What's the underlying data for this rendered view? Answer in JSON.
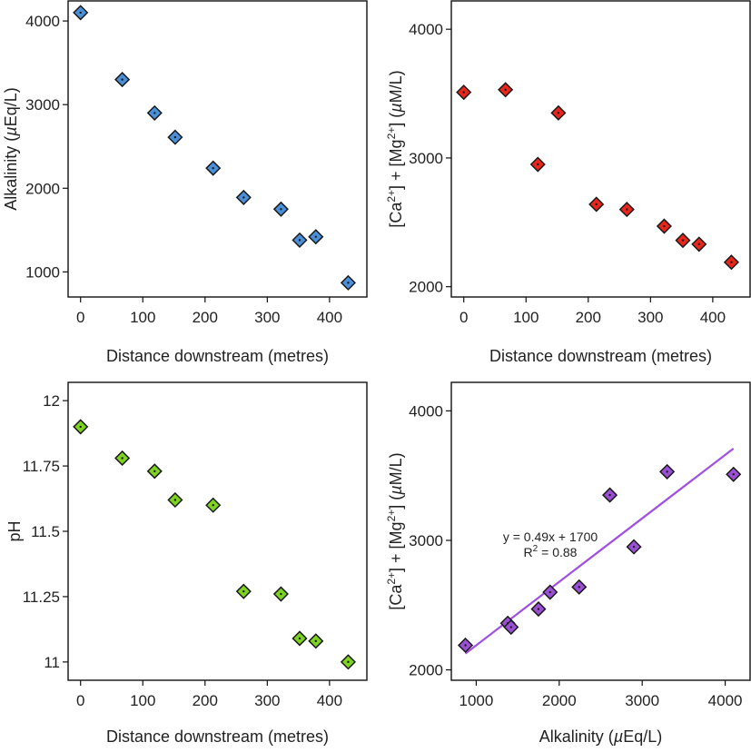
{
  "colors": {
    "alkalinity": "#4a90d9",
    "ca_mg": "#e8261c",
    "ph": "#7ed321",
    "scatter": "#9b4fd4",
    "fit_line": "#a050e0"
  },
  "chart_data": [
    {
      "type": "scatter",
      "name": "alkalinity-vs-distance",
      "xlabel": "Distance downstream (metres)",
      "ylabel": "Alkalinity (µEq/L)",
      "xlim": [
        -20,
        460
      ],
      "ylim": [
        700,
        4240
      ],
      "xticks": [
        0,
        100,
        200,
        300,
        400
      ],
      "yticks": [
        1000,
        2000,
        3000,
        4000
      ],
      "ytick_labels": [
        "1000",
        "2000",
        "3000",
        "4000"
      ],
      "x": [
        0,
        67,
        119,
        152,
        213,
        262,
        322,
        352,
        378,
        430
      ],
      "y": [
        4100,
        3300,
        2900,
        2610,
        2240,
        1890,
        1750,
        1380,
        1420,
        870
      ],
      "color_key": "alkalinity"
    },
    {
      "type": "scatter",
      "name": "camg-vs-distance",
      "xlabel": "Distance downstream (metres)",
      "ylabel": "[Ca2+] + [Mg2+] (µM/L)",
      "xlim": [
        -20,
        460
      ],
      "ylim": [
        1920,
        4220
      ],
      "xticks": [
        0,
        100,
        200,
        300,
        400
      ],
      "yticks": [
        2000,
        3000,
        4000
      ],
      "ytick_labels": [
        "2000",
        "3000",
        "4000"
      ],
      "x": [
        0,
        67,
        119,
        152,
        213,
        262,
        322,
        352,
        378,
        430
      ],
      "y": [
        3510,
        3530,
        2950,
        3350,
        2640,
        2600,
        2470,
        2360,
        2330,
        2190
      ],
      "color_key": "ca_mg"
    },
    {
      "type": "scatter",
      "name": "ph-vs-distance",
      "xlabel": "Distance downstream (metres)",
      "ylabel": "pH",
      "xlim": [
        -20,
        460
      ],
      "ylim": [
        10.93,
        12.07
      ],
      "xticks": [
        0,
        100,
        200,
        300,
        400
      ],
      "yticks": [
        11,
        11.25,
        11.5,
        11.75,
        12
      ],
      "ytick_labels": [
        "11",
        "11.25",
        "11.5",
        "11.75",
        "12"
      ],
      "x": [
        0,
        67,
        119,
        152,
        213,
        262,
        322,
        352,
        378,
        430
      ],
      "y": [
        11.9,
        11.78,
        11.73,
        11.62,
        11.6,
        11.27,
        11.26,
        11.09,
        11.08,
        11.0
      ],
      "color_key": "ph"
    },
    {
      "type": "scatter",
      "name": "camg-vs-alkalinity",
      "xlabel": "Alkalinity (µEq/L)",
      "ylabel": "[Ca2+] + [Mg2+] (µM/L)",
      "xlim": [
        700,
        4300
      ],
      "ylim": [
        1920,
        4220
      ],
      "xticks": [
        1000,
        2000,
        3000,
        4000
      ],
      "yticks": [
        2000,
        3000,
        4000
      ],
      "ytick_labels": [
        "2000",
        "3000",
        "4000"
      ],
      "x": [
        4100,
        3300,
        2900,
        2610,
        2240,
        1890,
        1750,
        1380,
        1420,
        870
      ],
      "y": [
        3510,
        3530,
        2950,
        3350,
        2640,
        2600,
        2470,
        2360,
        2330,
        2190
      ],
      "color_key": "scatter",
      "fit": {
        "slope": 0.49,
        "intercept": 1700,
        "x_range": [
          870,
          4100
        ]
      },
      "annotations": [
        "y = 0.49x + 1700",
        "R2 = 0.88"
      ]
    }
  ]
}
